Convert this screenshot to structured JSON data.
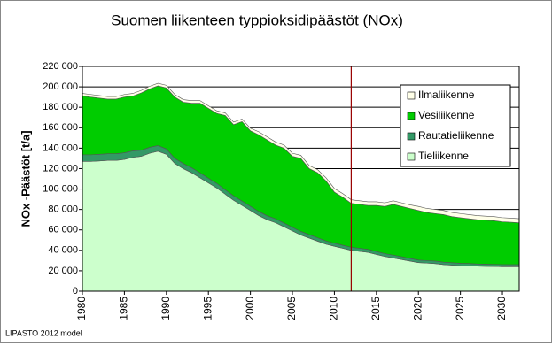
{
  "chart_data": {
    "type": "stacked-area",
    "title": "Suomen liikenteen typpioksidipäästöt (NOx)",
    "y_label": "NOx -Päästöt [t/a]",
    "footnote": "LIPASTO 2012 model",
    "x": [
      1980,
      1981,
      1982,
      1983,
      1984,
      1985,
      1986,
      1987,
      1988,
      1989,
      1990,
      1991,
      1992,
      1993,
      1994,
      1995,
      1996,
      1997,
      1998,
      1999,
      2000,
      2001,
      2002,
      2003,
      2004,
      2005,
      2006,
      2007,
      2008,
      2009,
      2010,
      2011,
      2012,
      2013,
      2014,
      2015,
      2016,
      2017,
      2018,
      2019,
      2020,
      2021,
      2022,
      2023,
      2024,
      2025,
      2026,
      2027,
      2028,
      2029,
      2030,
      2031,
      2032
    ],
    "series": [
      {
        "name": "Tieliikenne",
        "color": "#ccffcc",
        "values": [
          127000,
          127000,
          127500,
          128000,
          128000,
          129000,
          131000,
          132000,
          135000,
          137000,
          134000,
          125000,
          120000,
          116000,
          111000,
          106000,
          101000,
          95000,
          89000,
          84000,
          79000,
          74000,
          70000,
          67000,
          63000,
          59000,
          55000,
          52000,
          49000,
          46000,
          44000,
          42000,
          40000,
          39000,
          38000,
          36000,
          34000,
          32500,
          31000,
          29500,
          28000,
          27500,
          27000,
          26000,
          25500,
          25000,
          24800,
          24500,
          24300,
          24200,
          24000,
          24000,
          24000
        ]
      },
      {
        "name": "Rautatieliikenne",
        "color": "#339966",
        "values": [
          6500,
          6500,
          6500,
          6500,
          6500,
          6500,
          6300,
          6000,
          5800,
          5500,
          5200,
          5000,
          5000,
          4800,
          4800,
          4500,
          4500,
          4300,
          4300,
          4200,
          4000,
          4000,
          3800,
          3800,
          3700,
          3500,
          3500,
          3400,
          3300,
          3200,
          3000,
          3000,
          3000,
          3000,
          3000,
          2800,
          2800,
          2800,
          2700,
          2600,
          2500,
          2500,
          2500,
          2400,
          2400,
          2300,
          2300,
          2200,
          2200,
          2100,
          2100,
          2000,
          2000
        ]
      },
      {
        "name": "Vesiliikenne",
        "color": "#00cc00",
        "values": [
          57500,
          56500,
          55000,
          53500,
          53500,
          54500,
          53700,
          56000,
          57200,
          58500,
          59800,
          60000,
          60000,
          63200,
          68200,
          68500,
          68500,
          72700,
          69700,
          77800,
          74000,
          75000,
          74200,
          72200,
          73300,
          69500,
          71500,
          64600,
          63700,
          58800,
          50000,
          47000,
          43000,
          43000,
          43000,
          45200,
          46200,
          49700,
          49300,
          48900,
          48500,
          47000,
          46500,
          46600,
          45100,
          44700,
          43900,
          43300,
          43000,
          42700,
          41900,
          41500,
          41000
        ]
      },
      {
        "name": "Ilmaliikenne",
        "color": "#ffffe8",
        "values": [
          2500,
          2500,
          2500,
          2500,
          2500,
          2500,
          2500,
          2500,
          2500,
          2500,
          2500,
          2500,
          2500,
          2500,
          2500,
          2500,
          2500,
          2500,
          2500,
          2500,
          2500,
          3000,
          3000,
          3000,
          3000,
          3000,
          3000,
          3000,
          3000,
          3000,
          3500,
          3500,
          3500,
          3500,
          3500,
          3500,
          3500,
          3500,
          3500,
          3500,
          4000,
          4000,
          4000,
          4000,
          4000,
          4000,
          4000,
          4000,
          4000,
          4000,
          4000,
          4000,
          4000
        ]
      }
    ],
    "xlim": [
      1980,
      2032
    ],
    "xticks": [
      1980,
      1985,
      1990,
      1995,
      2000,
      2005,
      2010,
      2015,
      2020,
      2025,
      2030
    ],
    "ylim": [
      0,
      220000
    ],
    "yticks": [
      0,
      {
        "value": 20000,
        "label": "20 000"
      },
      {
        "value": 40000,
        "label": "40 000"
      },
      {
        "value": 60000,
        "label": "60 000"
      },
      {
        "value": 80000,
        "label": "80 000"
      },
      {
        "value": 100000,
        "label": "100 000"
      },
      {
        "value": 120000,
        "label": "120 000"
      },
      {
        "value": 140000,
        "label": "140 000"
      },
      {
        "value": 160000,
        "label": "160 000"
      },
      {
        "value": 180000,
        "label": "180 000"
      },
      {
        "value": 200000,
        "label": "200 000"
      },
      {
        "value": 220000,
        "label": "220 000"
      }
    ],
    "grid": true,
    "vline": 2012,
    "vline_color": "#990000",
    "legend": "upper right"
  }
}
